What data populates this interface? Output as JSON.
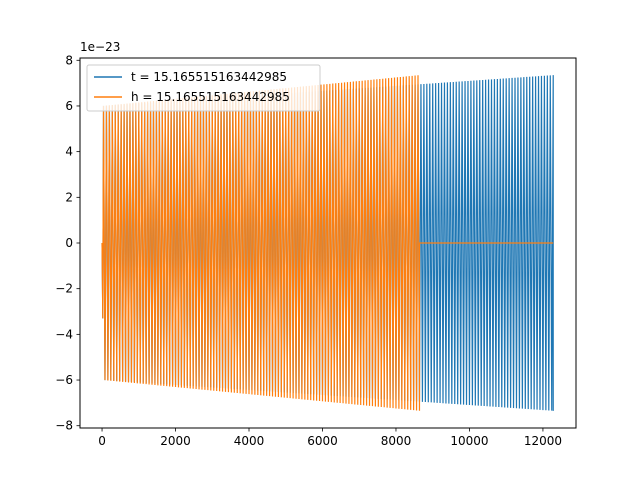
{
  "chart_data": {
    "type": "line",
    "title": "",
    "xlabel": "",
    "ylabel": "",
    "y_offset_text": "1e−23",
    "xlim": [
      -600,
      12900
    ],
    "ylim": [
      -8.1,
      8.1
    ],
    "x_ticks": [
      0,
      2000,
      4000,
      6000,
      8000,
      10000,
      12000
    ],
    "x_tick_labels": [
      "0",
      "2000",
      "4000",
      "6000",
      "8000",
      "10000",
      "12000"
    ],
    "y_ticks": [
      -8,
      -6,
      -4,
      -2,
      0,
      2,
      4,
      6,
      8
    ],
    "y_tick_labels": [
      "−8",
      "−6",
      "−4",
      "−2",
      "0",
      "2",
      "4",
      "6",
      "8"
    ],
    "grid": false,
    "legend_position": "top-left",
    "series": [
      {
        "name": "t = 15.165515163442985",
        "color": "#1f77b4",
        "description": "oscillating signal, amplitude rising from ~6.0 to ~7.35 (×1e−23) over x = 0 … 12280",
        "x_start": 0,
        "x_end": 12280,
        "amp_start": 6.0,
        "amp_end": 7.35,
        "first_dip": -3.3
      },
      {
        "name": "h = 15.165515163442985",
        "color": "#ff7f0e",
        "description": "oscillating signal, amplitude rising from ~6.0 to ~7.35 (×1e−23) over x = 0 … 8640, then flat at 0 until x = 12280",
        "x_start": 0,
        "x_end": 8640,
        "flat_end": 12280,
        "amp_start": 6.0,
        "amp_end": 7.35,
        "first_dip": -3.3
      }
    ]
  }
}
